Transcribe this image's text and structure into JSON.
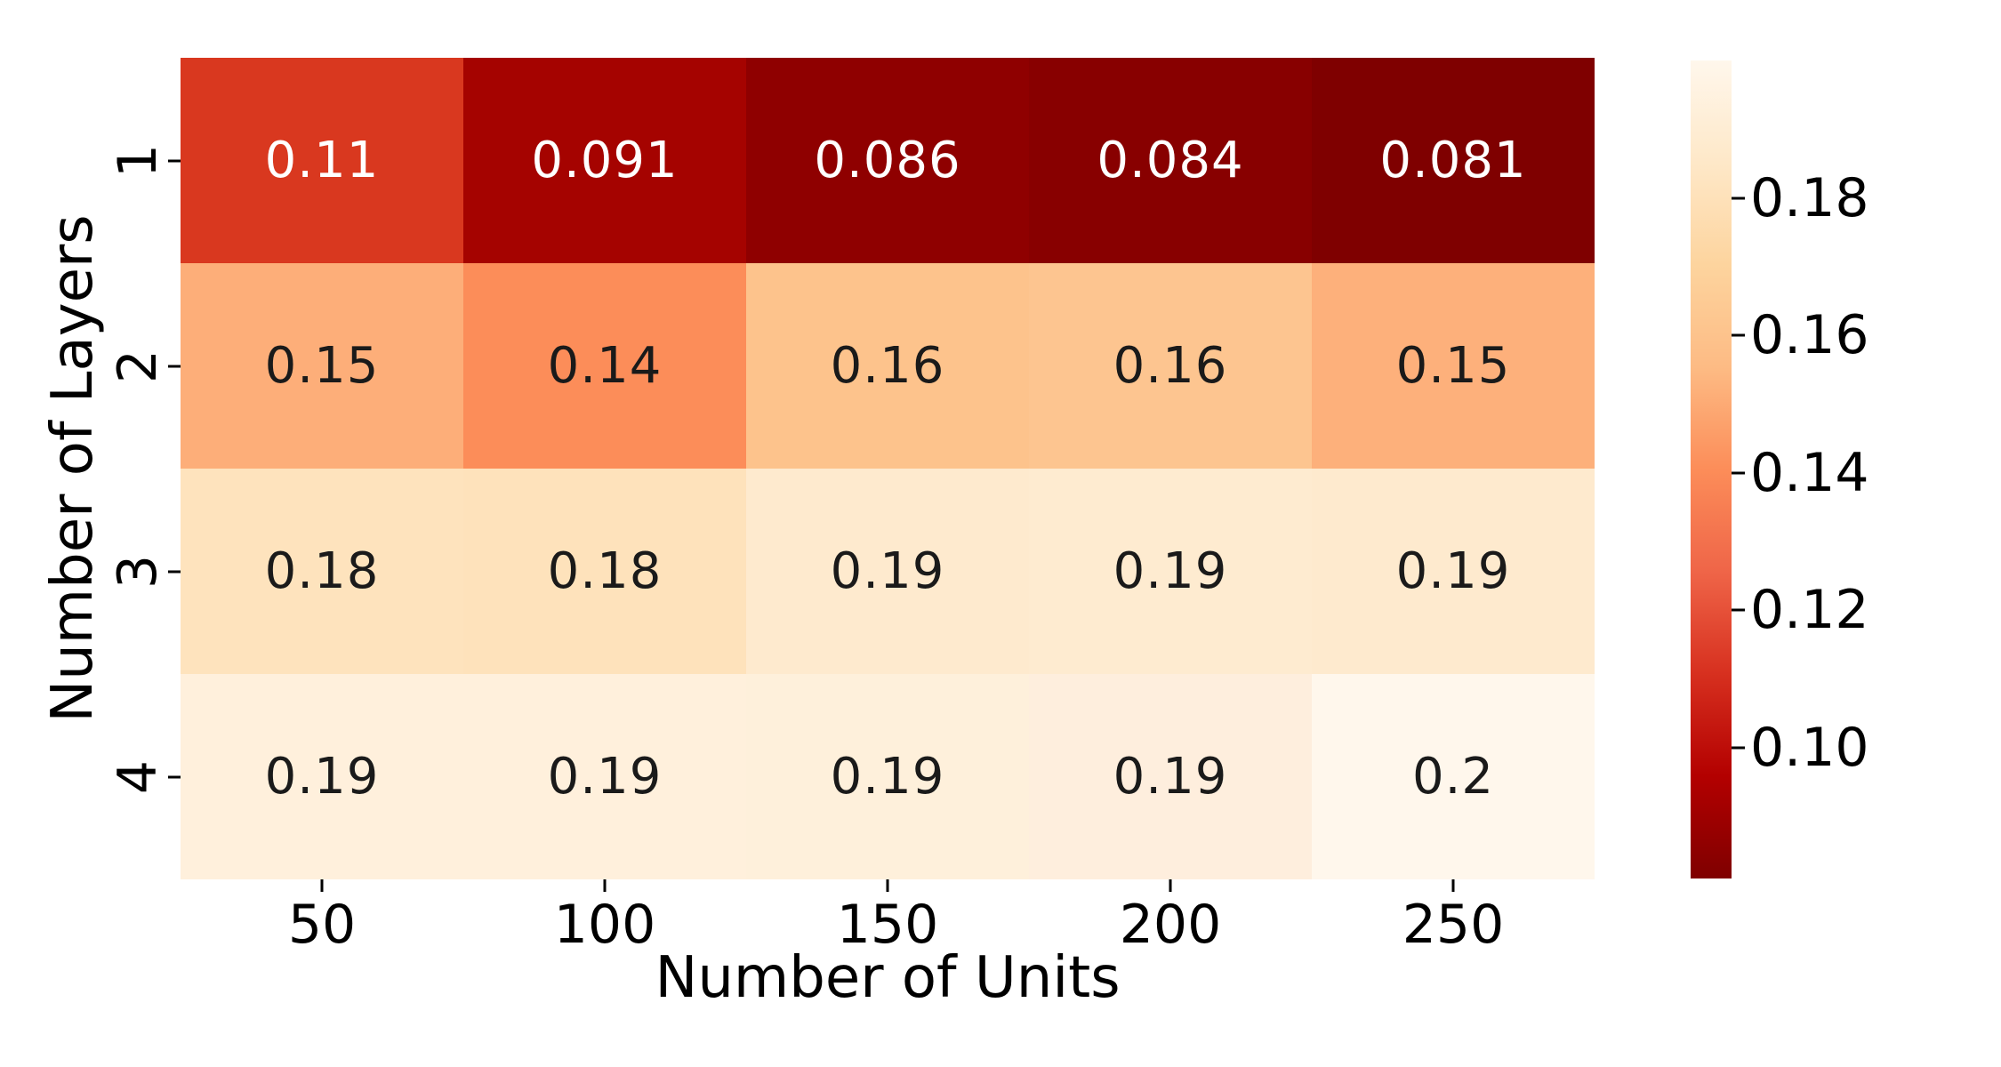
{
  "chart_data": {
    "type": "heatmap",
    "title": "",
    "xlabel": "Number of Units",
    "ylabel": "Number of Layers",
    "x_categories": [
      "50",
      "100",
      "150",
      "200",
      "250"
    ],
    "y_categories": [
      "1",
      "2",
      "3",
      "4"
    ],
    "values": [
      [
        0.11,
        0.091,
        0.086,
        0.084,
        0.081
      ],
      [
        0.15,
        0.14,
        0.16,
        0.16,
        0.15
      ],
      [
        0.18,
        0.18,
        0.19,
        0.19,
        0.19
      ],
      [
        0.19,
        0.19,
        0.19,
        0.19,
        0.2
      ]
    ],
    "cell_labels": [
      [
        "0.11",
        "0.091",
        "0.086",
        "0.084",
        "0.081"
      ],
      [
        "0.15",
        "0.14",
        "0.16",
        "0.16",
        "0.15"
      ],
      [
        "0.18",
        "0.18",
        "0.19",
        "0.19",
        "0.19"
      ],
      [
        "0.19",
        "0.19",
        "0.19",
        "0.19",
        "0.2"
      ]
    ],
    "cell_colors": [
      [
        "#d9381f",
        "#a50300",
        "#8f0000",
        "#880000",
        "#7f0000"
      ],
      [
        "#fdae79",
        "#fc8d59",
        "#fdc38c",
        "#fdc590",
        "#fdb07b"
      ],
      [
        "#fee3bd",
        "#fee2bb",
        "#feeace",
        "#feebd0",
        "#feeace"
      ],
      [
        "#fff0dc",
        "#fff0dc",
        "#fef0db",
        "#feeedd",
        "#fff7ec"
      ]
    ],
    "cell_text_colors": [
      [
        "#ffffff",
        "#ffffff",
        "#ffffff",
        "#ffffff",
        "#ffffff"
      ],
      [
        "#1a1a1a",
        "#1a1a1a",
        "#1a1a1a",
        "#1a1a1a",
        "#1a1a1a"
      ],
      [
        "#1a1a1a",
        "#1a1a1a",
        "#1a1a1a",
        "#1a1a1a",
        "#1a1a1a"
      ],
      [
        "#1a1a1a",
        "#1a1a1a",
        "#1a1a1a",
        "#1a1a1a",
        "#1a1a1a"
      ]
    ],
    "colormap": "OrRd_r",
    "vmin": 0.081,
    "vmax": 0.2,
    "grid_on": false,
    "colorbar": {
      "position": "right",
      "ticks": [
        {
          "label": "0.18",
          "pct_from_top": 16.8
        },
        {
          "label": "0.16",
          "pct_from_top": 33.6
        },
        {
          "label": "0.14",
          "pct_from_top": 50.4
        },
        {
          "label": "0.12",
          "pct_from_top": 67.2
        },
        {
          "label": "0.10",
          "pct_from_top": 84.0
        }
      ],
      "gradient_stops_top_to_bottom": [
        {
          "pct": 0,
          "color": "#fff7ec"
        },
        {
          "pct": 12.5,
          "color": "#fee8c8"
        },
        {
          "pct": 25,
          "color": "#fdd49e"
        },
        {
          "pct": 37.5,
          "color": "#fdbb84"
        },
        {
          "pct": 50,
          "color": "#fc8d59"
        },
        {
          "pct": 62.5,
          "color": "#ef6548"
        },
        {
          "pct": 75,
          "color": "#d7301f"
        },
        {
          "pct": 87.5,
          "color": "#b30000"
        },
        {
          "pct": 100,
          "color": "#7f0000"
        }
      ]
    }
  }
}
